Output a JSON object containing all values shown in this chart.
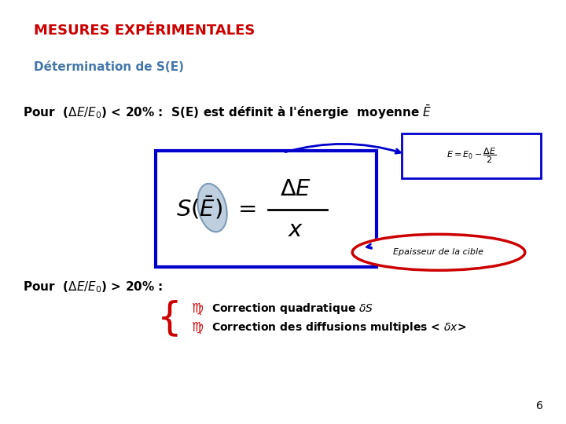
{
  "background_color": "#ffffff",
  "title": "MESURES EXPÉRIMENTALES",
  "title_color": "#cc0000",
  "title_fontsize": 13,
  "subtitle": "Détermination de S(E)",
  "subtitle_color": "#4477aa",
  "subtitle_fontsize": 11,
  "page_number": "6",
  "box_color": "#0000cc",
  "arrow_color": "#0000cc",
  "ellipse_fill": "#b0c4d8",
  "ellipse_edge": "#6688aa",
  "annotation_color": "#cc0000",
  "small_box_color": "#0000cc",
  "bullet_brace_color": "#cc0000"
}
